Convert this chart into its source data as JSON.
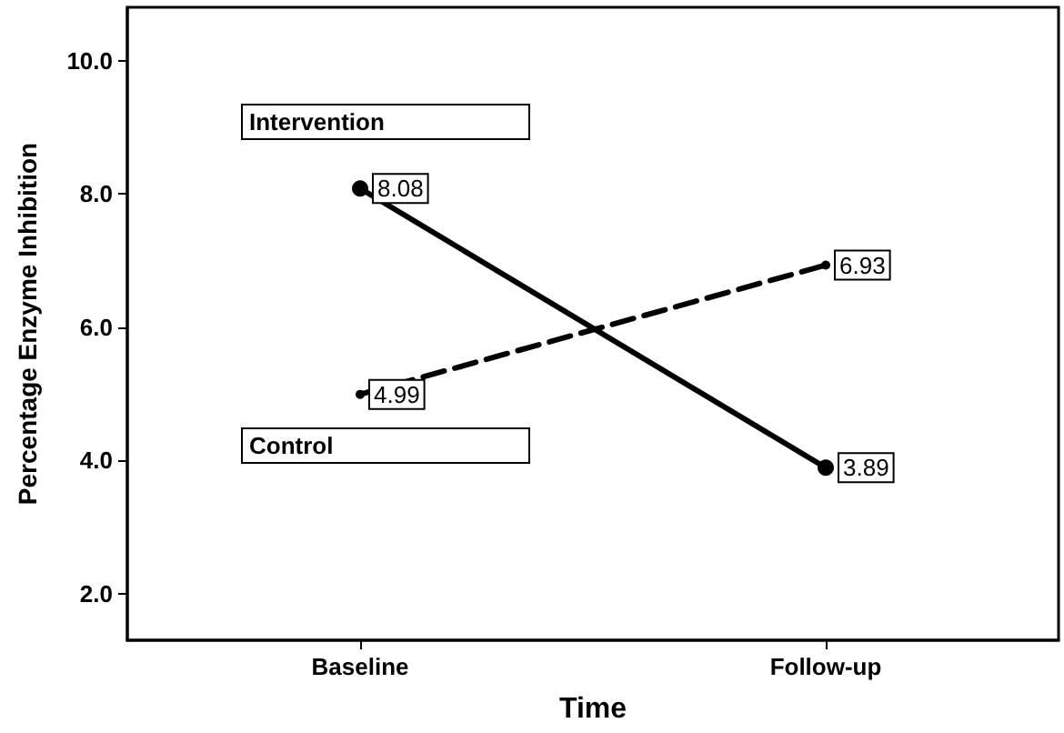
{
  "chart_data": {
    "type": "line",
    "xlabel": "Time",
    "ylabel": "Percentage Enzyme Inhibition",
    "categories": [
      "Baseline",
      "Follow-up"
    ],
    "series": [
      {
        "name": "Intervention",
        "color": "#000000",
        "values": [
          8.08,
          3.89
        ],
        "line_style": "solid"
      },
      {
        "name": "Control",
        "color": "#000000",
        "values": [
          4.99,
          6.93
        ],
        "line_style": "dashed"
      }
    ],
    "ylim": [
      1.3,
      10.8
    ],
    "yticks": [
      {
        "value": 2,
        "label": "2.0"
      },
      {
        "value": 4,
        "label": "4.0"
      },
      {
        "value": 6,
        "label": "6.0"
      },
      {
        "value": 8,
        "label": "8.0"
      },
      {
        "value": 10,
        "label": "10.0"
      }
    ],
    "grid": false,
    "legend": "left",
    "marker": "circle",
    "data_labels": true
  }
}
